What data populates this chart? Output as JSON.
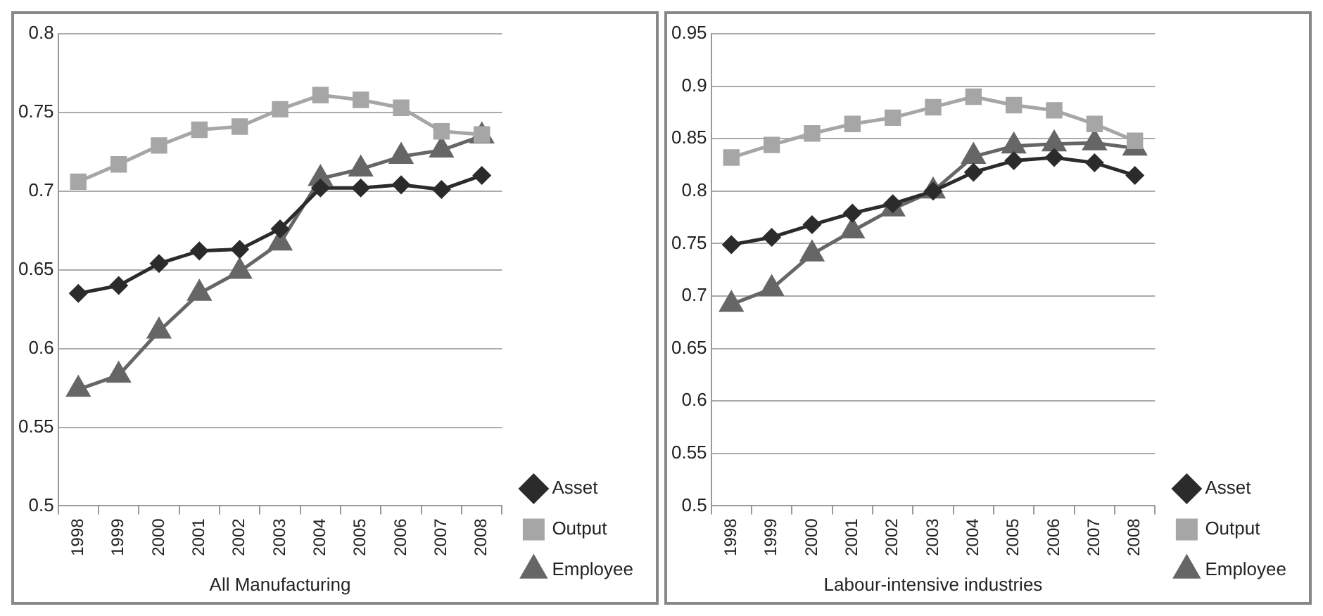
{
  "chart_data": [
    {
      "type": "line",
      "xlabel": "All Manufacturing",
      "categories": [
        "1998",
        "1999",
        "2000",
        "2001",
        "2002",
        "2003",
        "2004",
        "2005",
        "2006",
        "2007",
        "2008"
      ],
      "series": [
        {
          "name": "Asset",
          "color": "#2b2b2b",
          "marker": "diamond",
          "values": [
            0.635,
            0.64,
            0.654,
            0.662,
            0.663,
            0.676,
            0.702,
            0.702,
            0.704,
            0.701,
            0.71
          ]
        },
        {
          "name": "Output",
          "color": "#a6a6a6",
          "marker": "square",
          "values": [
            0.706,
            0.717,
            0.729,
            0.739,
            0.741,
            0.752,
            0.761,
            0.758,
            0.753,
            0.738,
            0.736
          ]
        },
        {
          "name": "Employee",
          "color": "#666666",
          "marker": "triangle",
          "values": [
            0.574,
            0.583,
            0.611,
            0.635,
            0.649,
            0.667,
            0.708,
            0.714,
            0.722,
            0.726,
            0.735
          ]
        }
      ],
      "ylim": [
        0.5,
        0.8
      ],
      "yticks": [
        0.5,
        0.55,
        0.6,
        0.65,
        0.7,
        0.75,
        0.8
      ],
      "grid": "y",
      "legend": "right"
    },
    {
      "type": "line",
      "xlabel": "Labour-intensive industries",
      "categories": [
        "1998",
        "1999",
        "2000",
        "2001",
        "2002",
        "2003",
        "2004",
        "2005",
        "2006",
        "2007",
        "2008"
      ],
      "series": [
        {
          "name": "Asset",
          "color": "#2b2b2b",
          "marker": "diamond",
          "values": [
            0.749,
            0.756,
            0.768,
            0.779,
            0.788,
            0.8,
            0.818,
            0.829,
            0.832,
            0.827,
            0.815
          ]
        },
        {
          "name": "Output",
          "color": "#a6a6a6",
          "marker": "square",
          "values": [
            0.832,
            0.844,
            0.855,
            0.864,
            0.87,
            0.88,
            0.89,
            0.882,
            0.877,
            0.864,
            0.848
          ]
        },
        {
          "name": "Employee",
          "color": "#666666",
          "marker": "triangle",
          "values": [
            0.692,
            0.707,
            0.74,
            0.762,
            0.783,
            0.8,
            0.833,
            0.843,
            0.845,
            0.846,
            0.841
          ]
        }
      ],
      "ylim": [
        0.5,
        0.95
      ],
      "yticks": [
        0.5,
        0.55,
        0.6,
        0.65,
        0.7,
        0.75,
        0.8,
        0.85,
        0.9,
        0.95
      ],
      "grid": "y",
      "legend": "right"
    }
  ]
}
